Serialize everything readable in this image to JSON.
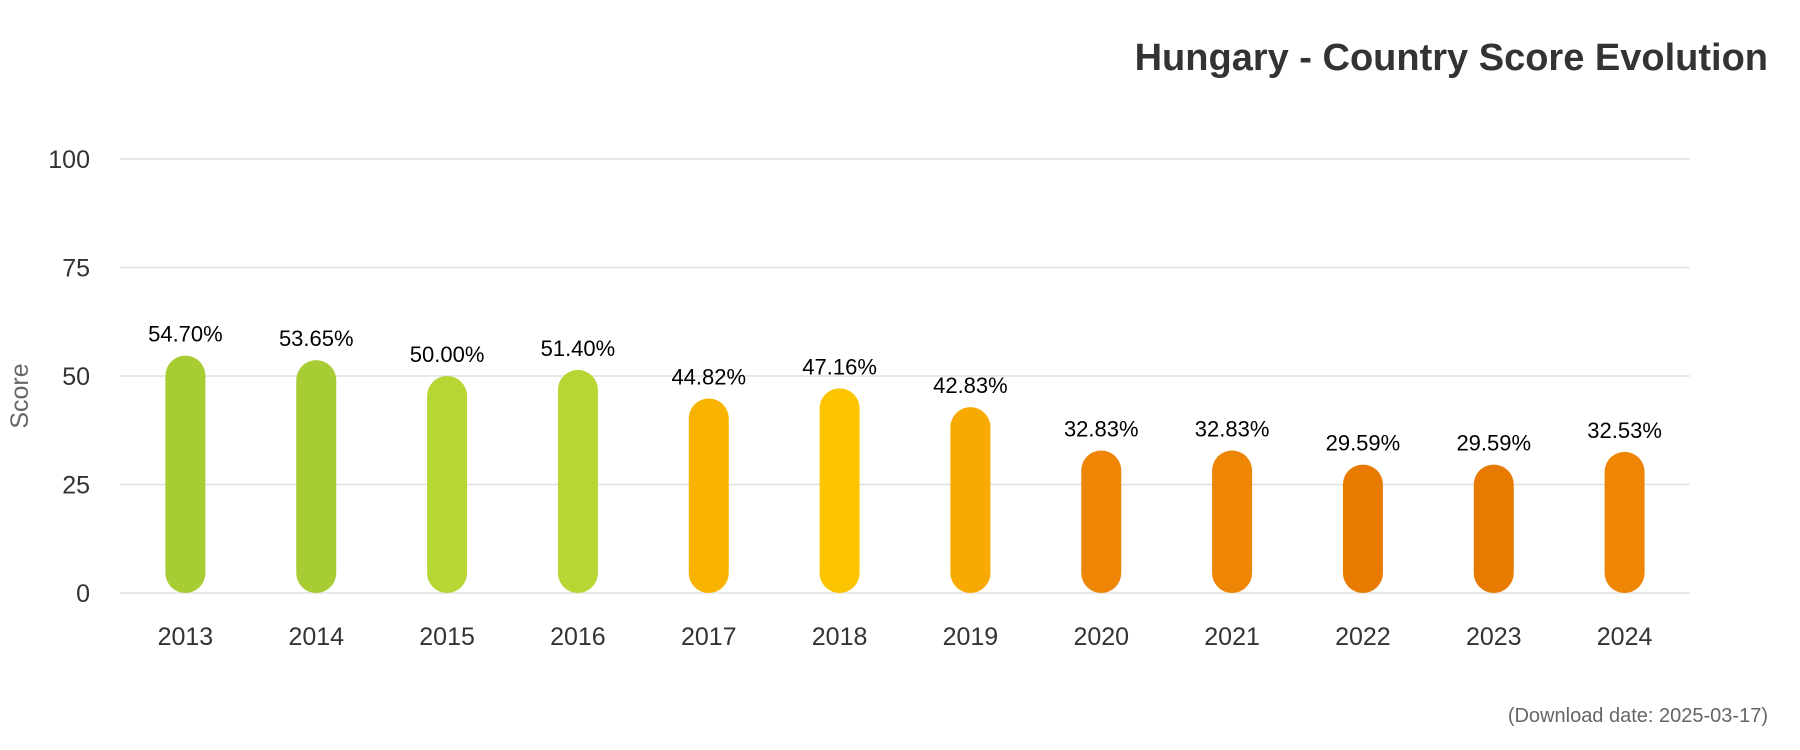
{
  "chart_data": {
    "type": "bar",
    "title": "Hungary - Country Score Evolution",
    "ylabel": "Score",
    "xlabel": "",
    "ylim": [
      0,
      100
    ],
    "yticks": [
      0,
      25,
      50,
      75,
      100
    ],
    "grid": true,
    "categories": [
      "2013",
      "2014",
      "2015",
      "2016",
      "2017",
      "2018",
      "2019",
      "2020",
      "2021",
      "2022",
      "2023",
      "2024"
    ],
    "values": [
      54.7,
      53.65,
      50.0,
      51.4,
      44.82,
      47.16,
      42.83,
      32.83,
      32.83,
      29.59,
      29.59,
      32.53
    ],
    "data_labels": [
      "54.70%",
      "53.65%",
      "50.00%",
      "51.40%",
      "44.82%",
      "47.16%",
      "42.83%",
      "32.83%",
      "32.83%",
      "29.59%",
      "29.59%",
      "32.53%"
    ],
    "colors": [
      "#a8cc33",
      "#a8cc33",
      "#b6d634",
      "#b6d634",
      "#f8b300",
      "#fcc500",
      "#f8aa00",
      "#ee8505",
      "#ee8505",
      "#e87a00",
      "#e87a00",
      "#ee8505"
    ]
  },
  "credit": "(Download date: 2025-03-17)"
}
